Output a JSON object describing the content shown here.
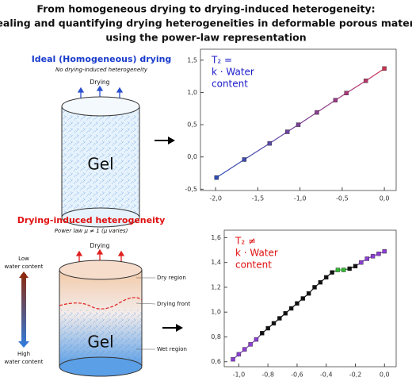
{
  "title": [
    "From homogeneous drying to drying-induced heterogeneity:",
    "revealing and quantifying drying heterogeneities in deformable porous materials",
    "using the power-law representation"
  ],
  "top": {
    "heading": "Ideal (Homogeneous) drying",
    "subheading": "No drying-induced heterogeneity",
    "drying_label": "Drying",
    "gel_label": "Gel"
  },
  "bottom": {
    "heading": "Drying-induced heterogeneity",
    "subheading": "Power law μ ≠ 1 (μ varies)",
    "drying_label": "Drying",
    "dry_region": "Dry region",
    "drying_front": "Drying front",
    "wet_region": "Wet region",
    "gel_label": "Gel",
    "low_label": [
      "Low",
      "water content"
    ],
    "high_label": [
      "High",
      "water content"
    ]
  },
  "chart_data": [
    {
      "type": "line",
      "annotation": [
        "T₂ =",
        "k · Water",
        "content"
      ],
      "annotation_color": "#1a1acc",
      "x": [
        -1.99,
        -1.66,
        -1.36,
        -1.15,
        -1.02,
        -0.8,
        -0.58,
        -0.45,
        -0.22,
        0.0
      ],
      "values": [
        -0.32,
        -0.04,
        0.21,
        0.39,
        0.5,
        0.69,
        0.88,
        0.99,
        1.18,
        1.37
      ],
      "colors": [
        "#2e4bb5",
        "#3f4ab0",
        "#5a46a8",
        "#6c43a0",
        "#7a4099",
        "#8a3d90",
        "#9a3a85",
        "#a8387a",
        "#b8366b",
        "#c8334f"
      ],
      "xlim": [
        -2.18,
        0.14
      ],
      "ylim": [
        -0.52,
        1.67
      ],
      "xticks": [
        {
          "value": -2.0,
          "label": "-2,0"
        },
        {
          "value": -1.5,
          "label": "-1,5"
        },
        {
          "value": -1.0,
          "label": "-1,0"
        },
        {
          "value": -0.5,
          "label": "-0,5"
        },
        {
          "value": 0.0,
          "label": "0,0"
        }
      ],
      "yticks": [
        {
          "value": -0.5,
          "label": "-0,5"
        },
        {
          "value": 0.0,
          "label": "0,0"
        },
        {
          "value": 0.5,
          "label": "0,5"
        },
        {
          "value": 1.0,
          "label": "1,0"
        },
        {
          "value": 1.5,
          "label": "1,5"
        }
      ]
    },
    {
      "type": "line",
      "annotation": [
        "T₂ ≠",
        "k · Water",
        "content"
      ],
      "annotation_color": "#e01010",
      "x": [
        -1.04,
        -1.0,
        -0.96,
        -0.92,
        -0.88,
        -0.84,
        -0.8,
        -0.76,
        -0.72,
        -0.68,
        -0.64,
        -0.6,
        -0.56,
        -0.52,
        -0.48,
        -0.44,
        -0.4,
        -0.36,
        -0.32,
        -0.28,
        -0.24,
        -0.2,
        -0.16,
        -0.12,
        -0.08,
        -0.04,
        0.0
      ],
      "values": [
        0.62,
        0.66,
        0.7,
        0.74,
        0.78,
        0.83,
        0.87,
        0.91,
        0.95,
        0.99,
        1.03,
        1.07,
        1.11,
        1.15,
        1.2,
        1.24,
        1.28,
        1.32,
        1.34,
        1.34,
        1.35,
        1.37,
        1.4,
        1.43,
        1.45,
        1.47,
        1.49
      ],
      "colors": [
        "#8a3fd0",
        "#8a3fd0",
        "#8a3fd0",
        "#8a3fd0",
        "#8a3fd0",
        "#111111",
        "#111111",
        "#111111",
        "#111111",
        "#111111",
        "#111111",
        "#111111",
        "#111111",
        "#111111",
        "#111111",
        "#111111",
        "#111111",
        "#111111",
        "#33bb33",
        "#33bb33",
        "#111111",
        "#111111",
        "#8a3fd0",
        "#8a3fd0",
        "#8a3fd0",
        "#8a3fd0",
        "#8a3fd0"
      ],
      "xlim": [
        -1.1,
        0.08
      ],
      "ylim": [
        0.56,
        1.66
      ],
      "xticks": [
        {
          "value": -1.0,
          "label": "-1,0"
        },
        {
          "value": -0.8,
          "label": "-0,8"
        },
        {
          "value": -0.6,
          "label": "-0,6"
        },
        {
          "value": -0.4,
          "label": "-0,4"
        },
        {
          "value": -0.2,
          "label": "-0,2"
        },
        {
          "value": 0.0,
          "label": "0,0"
        }
      ],
      "yticks": [
        {
          "value": 0.6,
          "label": "0,6"
        },
        {
          "value": 0.8,
          "label": "0,8"
        },
        {
          "value": 1.0,
          "label": "1,0"
        },
        {
          "value": 1.2,
          "label": "1,2"
        },
        {
          "value": 1.4,
          "label": "1,4"
        },
        {
          "value": 1.6,
          "label": "1,6"
        }
      ]
    }
  ]
}
